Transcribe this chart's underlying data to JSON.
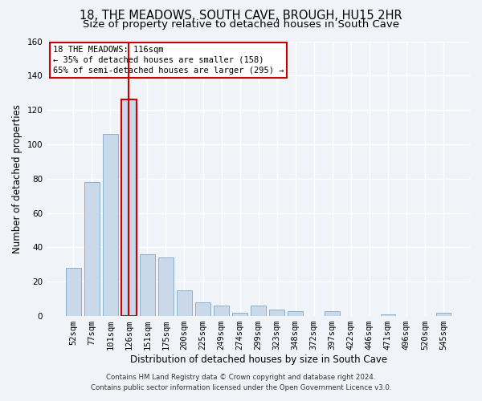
{
  "title": "18, THE MEADOWS, SOUTH CAVE, BROUGH, HU15 2HR",
  "subtitle": "Size of property relative to detached houses in South Cave",
  "xlabel": "Distribution of detached houses by size in South Cave",
  "ylabel": "Number of detached properties",
  "categories": [
    "52sqm",
    "77sqm",
    "101sqm",
    "126sqm",
    "151sqm",
    "175sqm",
    "200sqm",
    "225sqm",
    "249sqm",
    "274sqm",
    "299sqm",
    "323sqm",
    "348sqm",
    "372sqm",
    "397sqm",
    "422sqm",
    "446sqm",
    "471sqm",
    "496sqm",
    "520sqm",
    "545sqm"
  ],
  "values": [
    28,
    78,
    106,
    126,
    36,
    34,
    15,
    8,
    6,
    2,
    6,
    4,
    3,
    0,
    3,
    0,
    0,
    1,
    0,
    0,
    2
  ],
  "bar_color": "#c9d9ea",
  "bar_edge_color": "#8ab0cc",
  "highlight_bar_index": 3,
  "highlight_bar_edge_color": "#cc0000",
  "vline_color": "#cc0000",
  "ylim": [
    0,
    160
  ],
  "yticks": [
    0,
    20,
    40,
    60,
    80,
    100,
    120,
    140,
    160
  ],
  "annotation_box_text": "18 THE MEADOWS: 116sqm\n← 35% of detached houses are smaller (158)\n65% of semi-detached houses are larger (295) →",
  "footnote1": "Contains HM Land Registry data © Crown copyright and database right 2024.",
  "footnote2": "Contains public sector information licensed under the Open Government Licence v3.0.",
  "bg_color": "#f0f4f8",
  "plot_bg_color": "#f0f4f8",
  "grid_color": "#ffffff",
  "title_fontsize": 10.5,
  "subtitle_fontsize": 9.5,
  "tick_fontsize": 7.5,
  "ylabel_fontsize": 8.5,
  "xlabel_fontsize": 8.5,
  "footnote_fontsize": 6.2,
  "annot_fontsize": 7.5
}
